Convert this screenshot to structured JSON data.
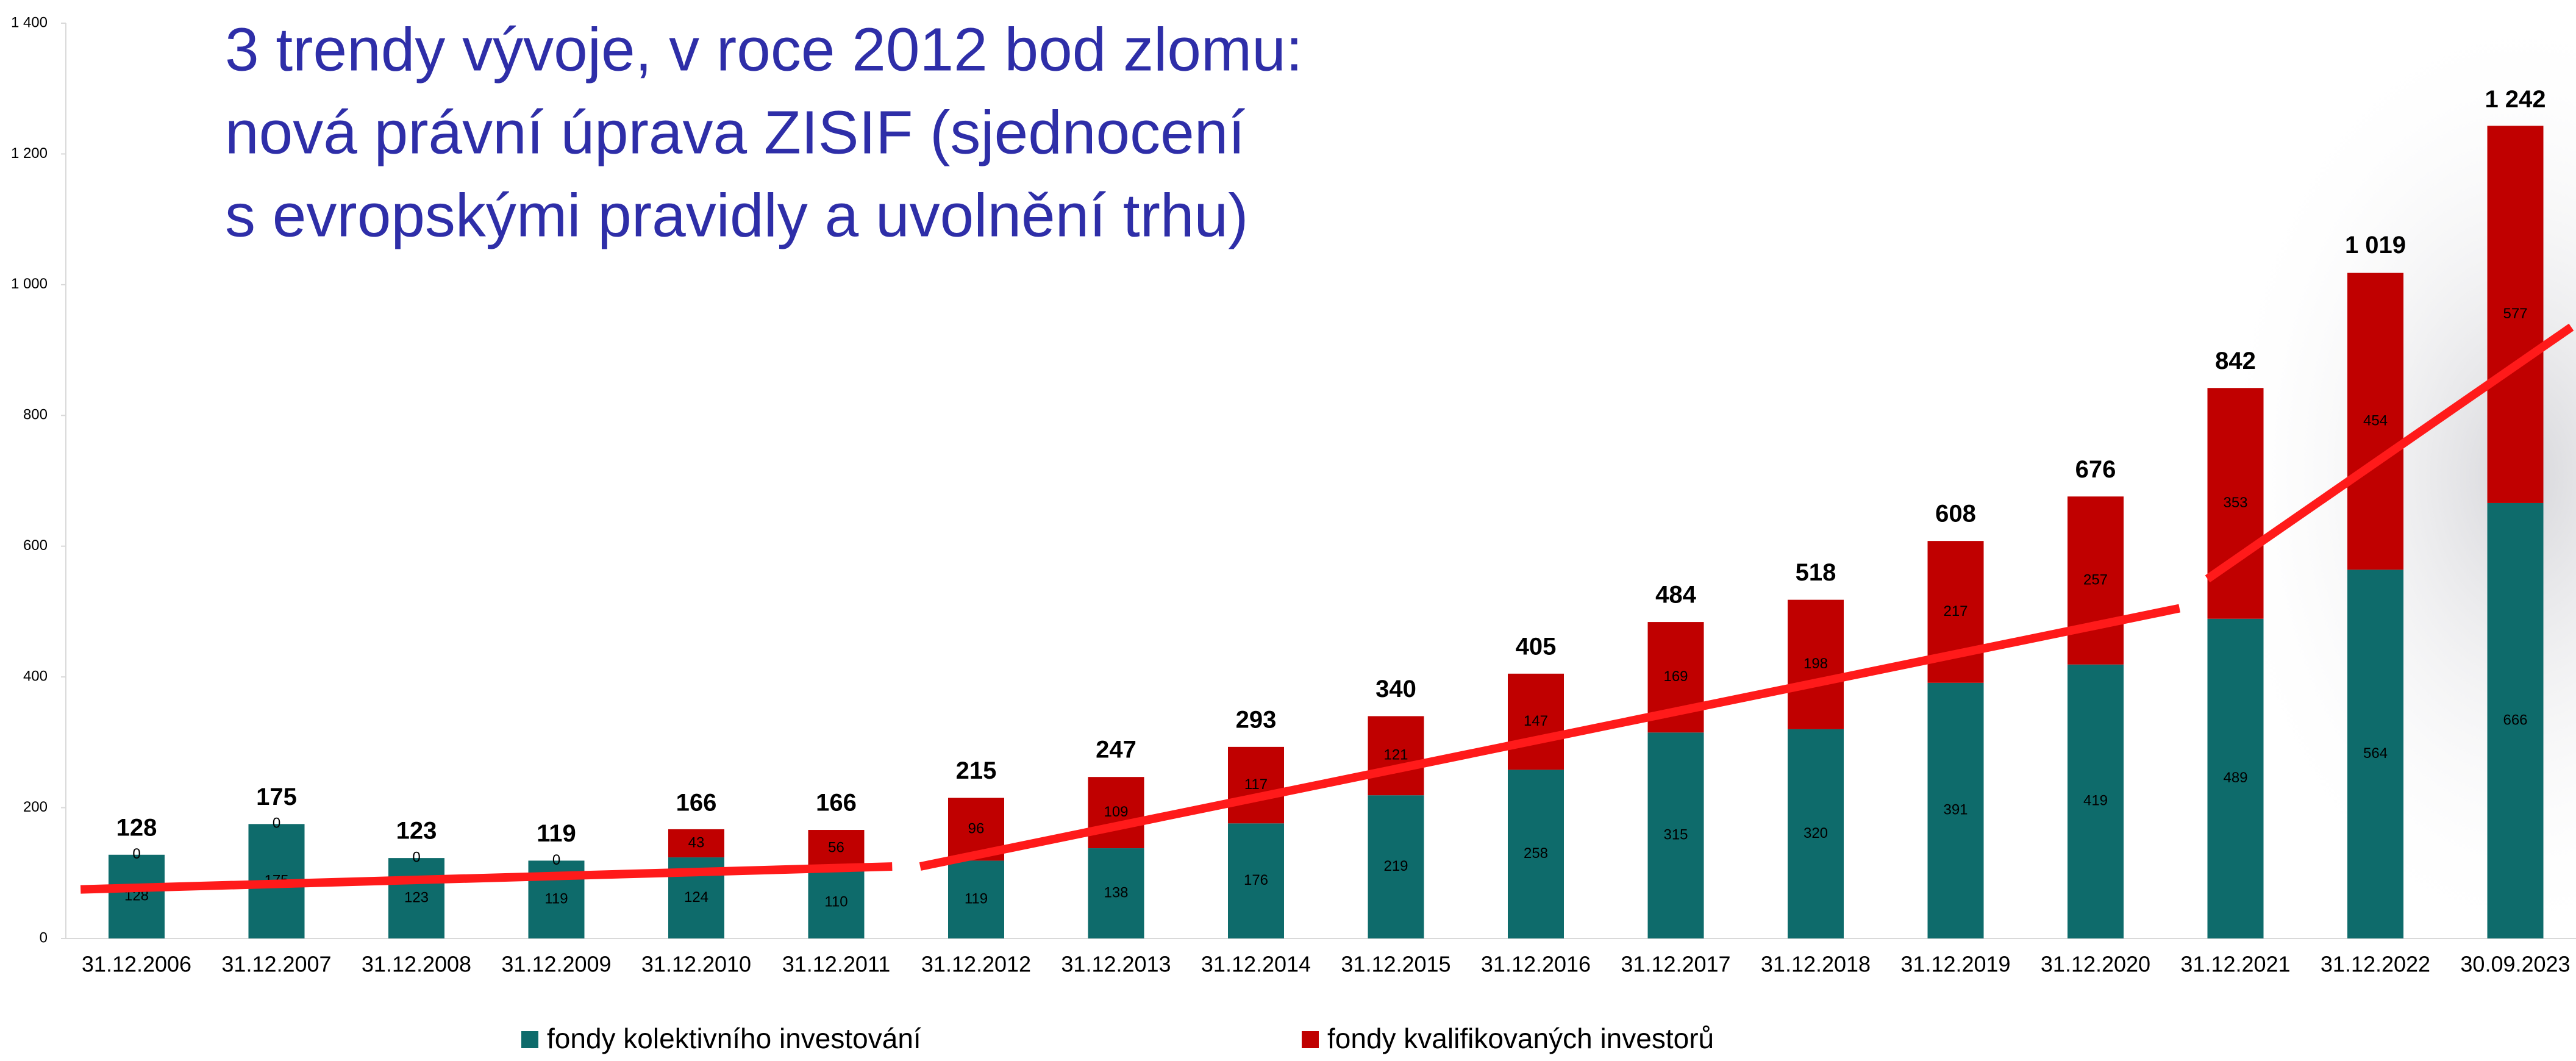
{
  "chart_data": {
    "type": "stacked-bar",
    "title_lines": [
      "3 trendy vývoje, v roce 2012 bod zlomu:",
      "nová právní úprava ZISIF (sjednocení",
      "s evropskými pravidly a uvolnění trhu)"
    ],
    "categories": [
      "31.12.2006",
      "31.12.2007",
      "31.12.2008",
      "31.12.2009",
      "31.12.2010",
      "31.12.2011",
      "31.12.2012",
      "31.12.2013",
      "31.12.2014",
      "31.12.2015",
      "31.12.2016",
      "31.12.2017",
      "31.12.2018",
      "31.12.2019",
      "31.12.2020",
      "31.12.2021",
      "31.12.2022",
      "30.09.2023"
    ],
    "series": [
      {
        "name": "fondy kolektivního investování",
        "color": "#0e6b6b",
        "values": [
          128,
          175,
          123,
          119,
          124,
          110,
          119,
          138,
          176,
          219,
          258,
          315,
          320,
          391,
          419,
          489,
          564,
          666
        ]
      },
      {
        "name": "fondy kvalifikovaných investorů",
        "color": "#c00000",
        "values": [
          0,
          0,
          0,
          0,
          43,
          56,
          96,
          109,
          117,
          121,
          147,
          169,
          198,
          217,
          257,
          353,
          454,
          577
        ]
      }
    ],
    "totals": {
      "values": [
        128,
        175,
        123,
        119,
        166,
        166,
        215,
        247,
        293,
        340,
        405,
        484,
        518,
        608,
        676,
        842,
        1019,
        1242
      ],
      "value_labels": [
        "128",
        "175",
        "123",
        "119",
        "166",
        "166",
        "215",
        "247",
        "293",
        "340",
        "405",
        "484",
        "518",
        "608",
        "676",
        "842",
        "1 019",
        "1 242"
      ]
    },
    "trend_lines": {
      "color": "#ff1a1a",
      "lines": [
        {
          "x": [
            -0.4,
            5.4
          ],
          "values": [
            75,
            110
          ]
        },
        {
          "x": [
            5.6,
            14.6
          ],
          "values": [
            110,
            505
          ]
        },
        {
          "x": [
            14.8,
            17.4
          ],
          "values": [
            550,
            935
          ]
        }
      ]
    },
    "ylim": [
      0,
      1400
    ],
    "yticks": [
      0,
      200,
      400,
      600,
      800,
      {
        "value": 1000,
        "label": "1 000"
      },
      {
        "value": 1200,
        "label": "1 200"
      },
      {
        "value": 1400,
        "label": "1 400"
      }
    ],
    "legend": "bottom"
  }
}
